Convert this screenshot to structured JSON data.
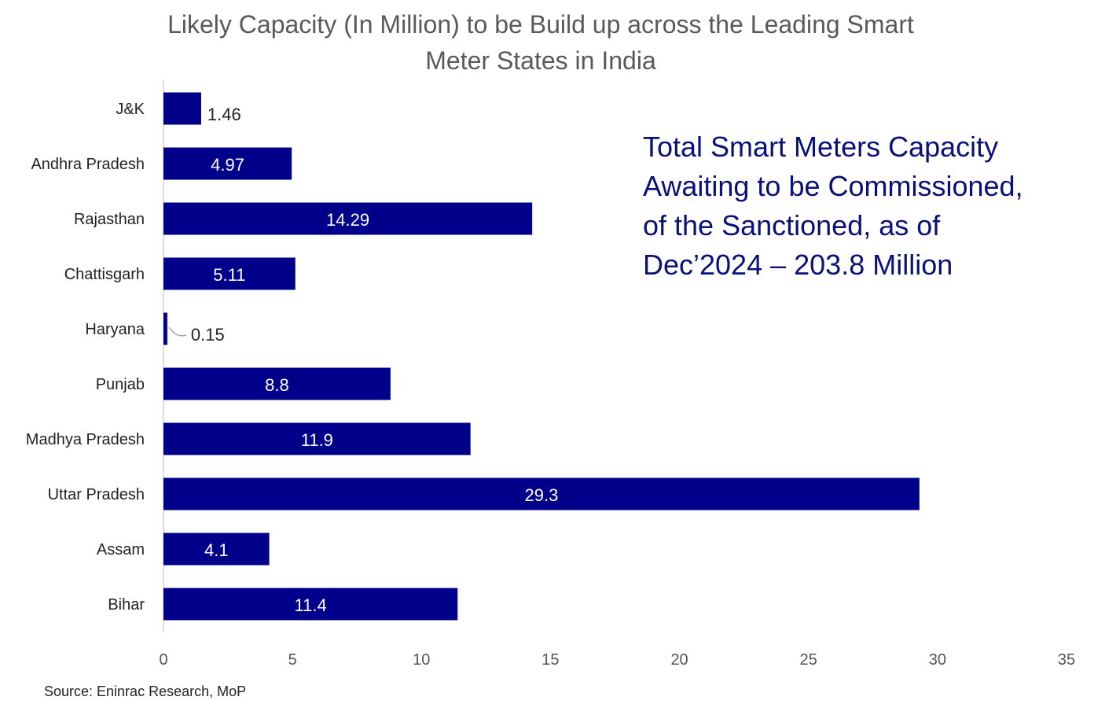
{
  "chart_data": {
    "type": "bar",
    "orientation": "horizontal",
    "title_lines": [
      "Likely Capacity (In Million) to be Build up across the Leading Smart",
      "Meter States in India"
    ],
    "categories": [
      "J&K",
      "Andhra Pradesh",
      "Rajasthan",
      "Chattisgarh",
      "Haryana",
      "Punjab",
      "Madhya Pradesh",
      "Uttar Pradesh",
      "Assam",
      "Bihar"
    ],
    "values": [
      1.46,
      4.97,
      14.29,
      5.11,
      0.15,
      8.8,
      11.9,
      29.3,
      4.1,
      11.4
    ],
    "data_labels": [
      "1.46",
      "4.97",
      "14.29",
      "5.11",
      "0.15",
      "8.8",
      "11.9",
      "29.3",
      "4.1",
      "11.4"
    ],
    "xlim": [
      0,
      35
    ],
    "xticks": [
      0,
      5,
      10,
      15,
      20,
      25,
      30,
      35
    ],
    "xlabel": "",
    "ylabel": "",
    "grid": false,
    "bar_color": "#00008b",
    "annotation_lines": [
      "Total Smart Meters Capacity",
      "Awaiting to be Commissioned,",
      "of the Sanctioned, as of",
      "Dec’2024  – 203.8 Million"
    ],
    "source": "Source: Eninrac Research, MoP"
  }
}
